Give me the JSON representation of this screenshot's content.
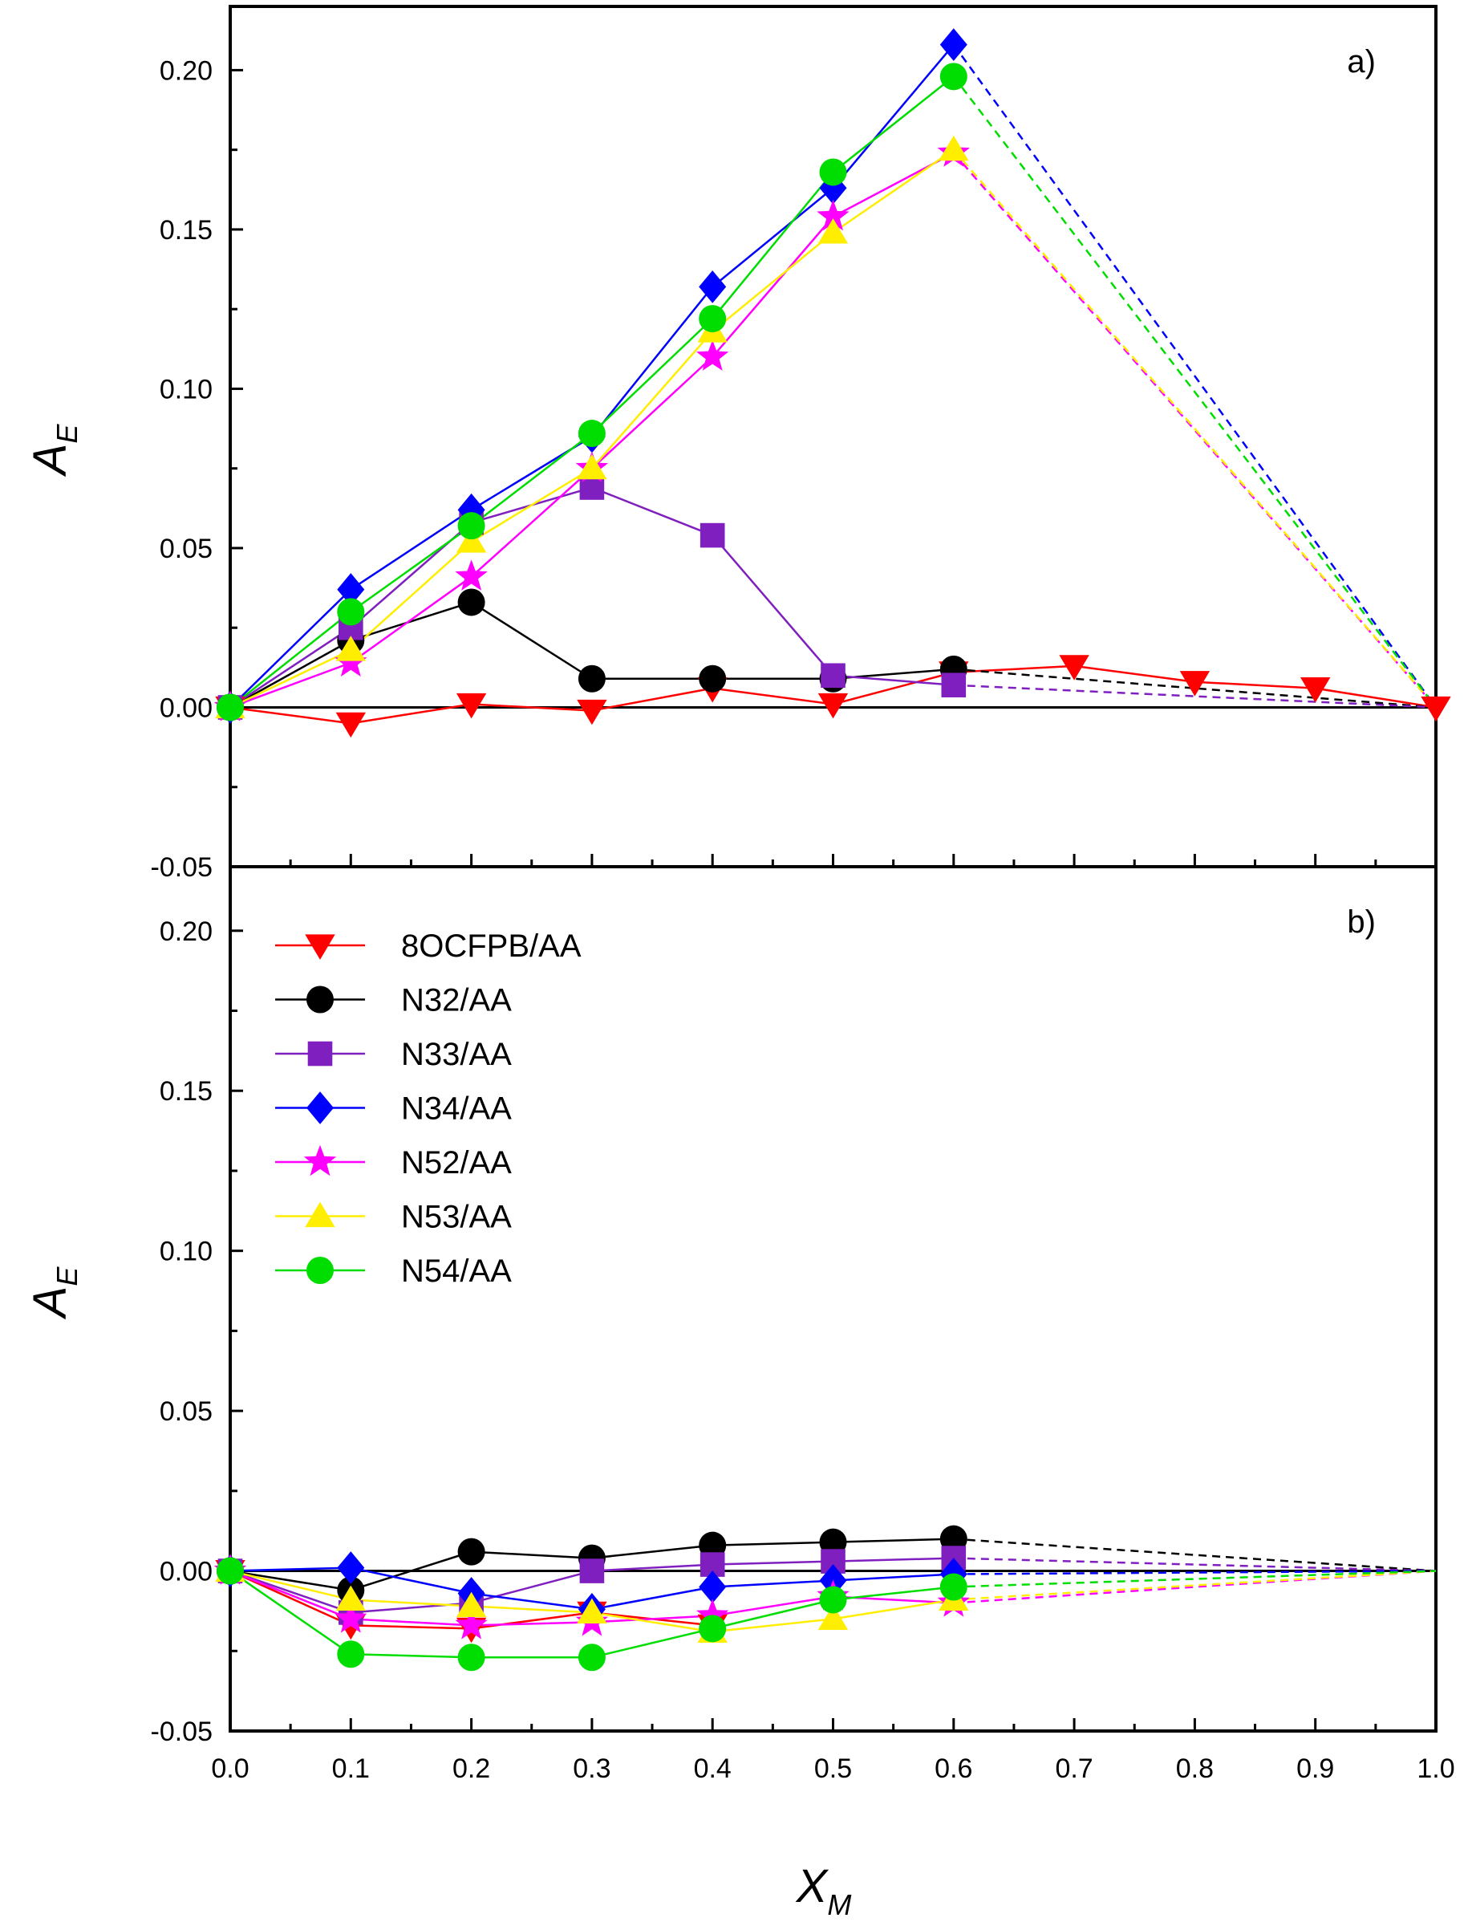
{
  "chart_data": {
    "type": "line",
    "xlabel_main": "X",
    "xlabel_sub": "M",
    "ylabel_main": "A",
    "ylabel_sub": "E",
    "xlim": [
      0.0,
      1.0
    ],
    "ylim": [
      -0.05,
      0.22
    ],
    "x_ticks": [
      0.0,
      0.1,
      0.2,
      0.3,
      0.4,
      0.5,
      0.6,
      0.7,
      0.8,
      0.9,
      1.0
    ],
    "x_tick_labels": [
      "0.0",
      "0.1",
      "0.2",
      "0.3",
      "0.4",
      "0.5",
      "0.6",
      "0.7",
      "0.8",
      "0.9",
      "1.0"
    ],
    "y_ticks": [
      -0.05,
      0.0,
      0.05,
      0.1,
      0.15,
      0.2
    ],
    "y_tick_labels": [
      "-0.05",
      "0.00",
      "0.05",
      "0.10",
      "0.15",
      "0.20"
    ],
    "legend": [
      {
        "key": "s8",
        "label": "8OCFPB/AA"
      },
      {
        "key": "s32",
        "label": "N32/AA"
      },
      {
        "key": "s33",
        "label": "N33/AA"
      },
      {
        "key": "s34",
        "label": "N34/AA"
      },
      {
        "key": "s52",
        "label": "N52/AA"
      },
      {
        "key": "s53",
        "label": "N53/AA"
      },
      {
        "key": "s54",
        "label": "N54/AA"
      }
    ],
    "series_style": {
      "s8": {
        "color": "#ff0000",
        "marker": "triangle-down"
      },
      "s32": {
        "color": "#000000",
        "marker": "circle"
      },
      "s33": {
        "color": "#7f1fbf",
        "marker": "square"
      },
      "s34": {
        "color": "#0000ff",
        "marker": "diamond"
      },
      "s52": {
        "color": "#ff00ff",
        "marker": "star"
      },
      "s53": {
        "color": "#ffee00",
        "marker": "triangle-up"
      },
      "s54": {
        "color": "#00dd00",
        "marker": "circle"
      }
    },
    "panels": [
      {
        "label": "a)",
        "series": [
          {
            "key": "s8",
            "x": [
              0.0,
              0.1,
              0.2,
              0.3,
              0.4,
              0.5,
              0.6,
              0.7,
              0.8,
              0.9,
              1.0
            ],
            "y": [
              0.0,
              -0.005,
              0.001,
              -0.001,
              0.006,
              0.001,
              0.011,
              0.013,
              0.008,
              0.006,
              0.0
            ],
            "dashed_from": null
          },
          {
            "key": "s32",
            "x": [
              0.0,
              0.1,
              0.2,
              0.3,
              0.4,
              0.5,
              0.6,
              1.0
            ],
            "y": [
              0.0,
              0.021,
              0.033,
              0.009,
              0.009,
              0.009,
              0.012,
              0.0
            ],
            "dashed_from": 0.6
          },
          {
            "key": "s33",
            "x": [
              0.0,
              0.1,
              0.2,
              0.3,
              0.4,
              0.5,
              0.6,
              1.0
            ],
            "y": [
              0.0,
              0.025,
              0.058,
              0.069,
              0.054,
              0.01,
              0.007,
              0.0
            ],
            "dashed_from": 0.6
          },
          {
            "key": "s34",
            "x": [
              0.0,
              0.1,
              0.2,
              0.3,
              0.4,
              0.5,
              0.6,
              1.0
            ],
            "y": [
              0.0,
              0.037,
              0.062,
              0.085,
              0.132,
              0.163,
              0.208,
              0.0
            ],
            "dashed_from": 0.6
          },
          {
            "key": "s52",
            "x": [
              0.0,
              0.1,
              0.2,
              0.3,
              0.4,
              0.5,
              0.6,
              1.0
            ],
            "y": [
              0.0,
              0.014,
              0.041,
              0.075,
              0.11,
              0.154,
              0.174,
              0.0
            ],
            "dashed_from": 0.6
          },
          {
            "key": "s53",
            "x": [
              0.0,
              0.1,
              0.2,
              0.3,
              0.4,
              0.5,
              0.6,
              1.0
            ],
            "y": [
              0.0,
              0.018,
              0.052,
              0.075,
              0.118,
              0.149,
              0.175,
              0.0
            ],
            "dashed_from": 0.6
          },
          {
            "key": "s54",
            "x": [
              0.0,
              0.1,
              0.2,
              0.3,
              0.4,
              0.5,
              0.6,
              1.0
            ],
            "y": [
              0.0,
              0.03,
              0.057,
              0.086,
              0.122,
              0.168,
              0.198,
              0.0
            ],
            "dashed_from": 0.6
          }
        ]
      },
      {
        "label": "b)",
        "series": [
          {
            "key": "s8",
            "x": [
              0.0,
              0.1,
              0.2,
              0.3,
              0.4
            ],
            "y": [
              0.0,
              -0.017,
              -0.018,
              -0.013,
              -0.017
            ],
            "dashed_from": null
          },
          {
            "key": "s32",
            "x": [
              0.0,
              0.1,
              0.2,
              0.3,
              0.4,
              0.5,
              0.6,
              1.0
            ],
            "y": [
              0.0,
              -0.006,
              0.006,
              0.004,
              0.008,
              0.009,
              0.01,
              0.0
            ],
            "dashed_from": 0.6
          },
          {
            "key": "s33",
            "x": [
              0.0,
              0.1,
              0.2,
              0.3,
              0.4,
              0.5,
              0.6,
              1.0
            ],
            "y": [
              0.0,
              -0.013,
              -0.01,
              0.0,
              0.002,
              0.003,
              0.004,
              0.0
            ],
            "dashed_from": 0.6
          },
          {
            "key": "s34",
            "x": [
              0.0,
              0.1,
              0.2,
              0.3,
              0.4,
              0.5,
              0.6,
              1.0
            ],
            "y": [
              0.0,
              0.001,
              -0.007,
              -0.012,
              -0.005,
              -0.003,
              -0.001,
              0.0
            ],
            "dashed_from": 0.6
          },
          {
            "key": "s52",
            "x": [
              0.0,
              0.1,
              0.2,
              0.3,
              0.4,
              0.5,
              0.6,
              1.0
            ],
            "y": [
              0.0,
              -0.015,
              -0.017,
              -0.016,
              -0.014,
              -0.008,
              -0.01,
              0.0
            ],
            "dashed_from": 0.6
          },
          {
            "key": "s53",
            "x": [
              0.0,
              0.1,
              0.2,
              0.3,
              0.4,
              0.5,
              0.6,
              1.0
            ],
            "y": [
              0.0,
              -0.009,
              -0.011,
              -0.013,
              -0.019,
              -0.015,
              -0.009,
              0.0
            ],
            "dashed_from": 0.6
          },
          {
            "key": "s54",
            "x": [
              0.0,
              0.1,
              0.2,
              0.3,
              0.4,
              0.5,
              0.6,
              1.0
            ],
            "y": [
              0.0,
              -0.026,
              -0.027,
              -0.027,
              -0.018,
              -0.009,
              -0.005,
              0.0
            ],
            "dashed_from": 0.6
          }
        ]
      }
    ]
  }
}
